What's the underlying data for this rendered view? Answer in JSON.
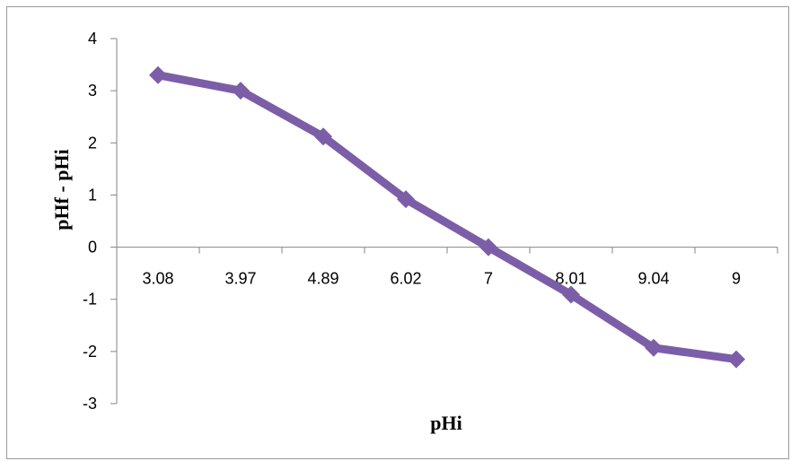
{
  "chart_data": {
    "type": "line",
    "categories": [
      "3.08",
      "3.97",
      "4.89",
      "6.02",
      "7",
      "8.01",
      "9.04",
      "9"
    ],
    "series": [
      {
        "values": [
          3.3,
          3.0,
          2.12,
          0.92,
          0.0,
          -0.91,
          -1.93,
          -2.15
        ]
      }
    ],
    "xlabel": "pHi",
    "ylabel": "pHf - pHi",
    "ylim": [
      -3,
      4
    ],
    "yticks": [
      4,
      3,
      2,
      1,
      0,
      -1,
      -2,
      -3
    ],
    "grid": false,
    "legend": "none",
    "marker": "diamond",
    "colors": {
      "series": "#7b5ea7",
      "marker": "#7b5ea7",
      "axis": "#868686",
      "frame": "#9a9a9a"
    }
  }
}
